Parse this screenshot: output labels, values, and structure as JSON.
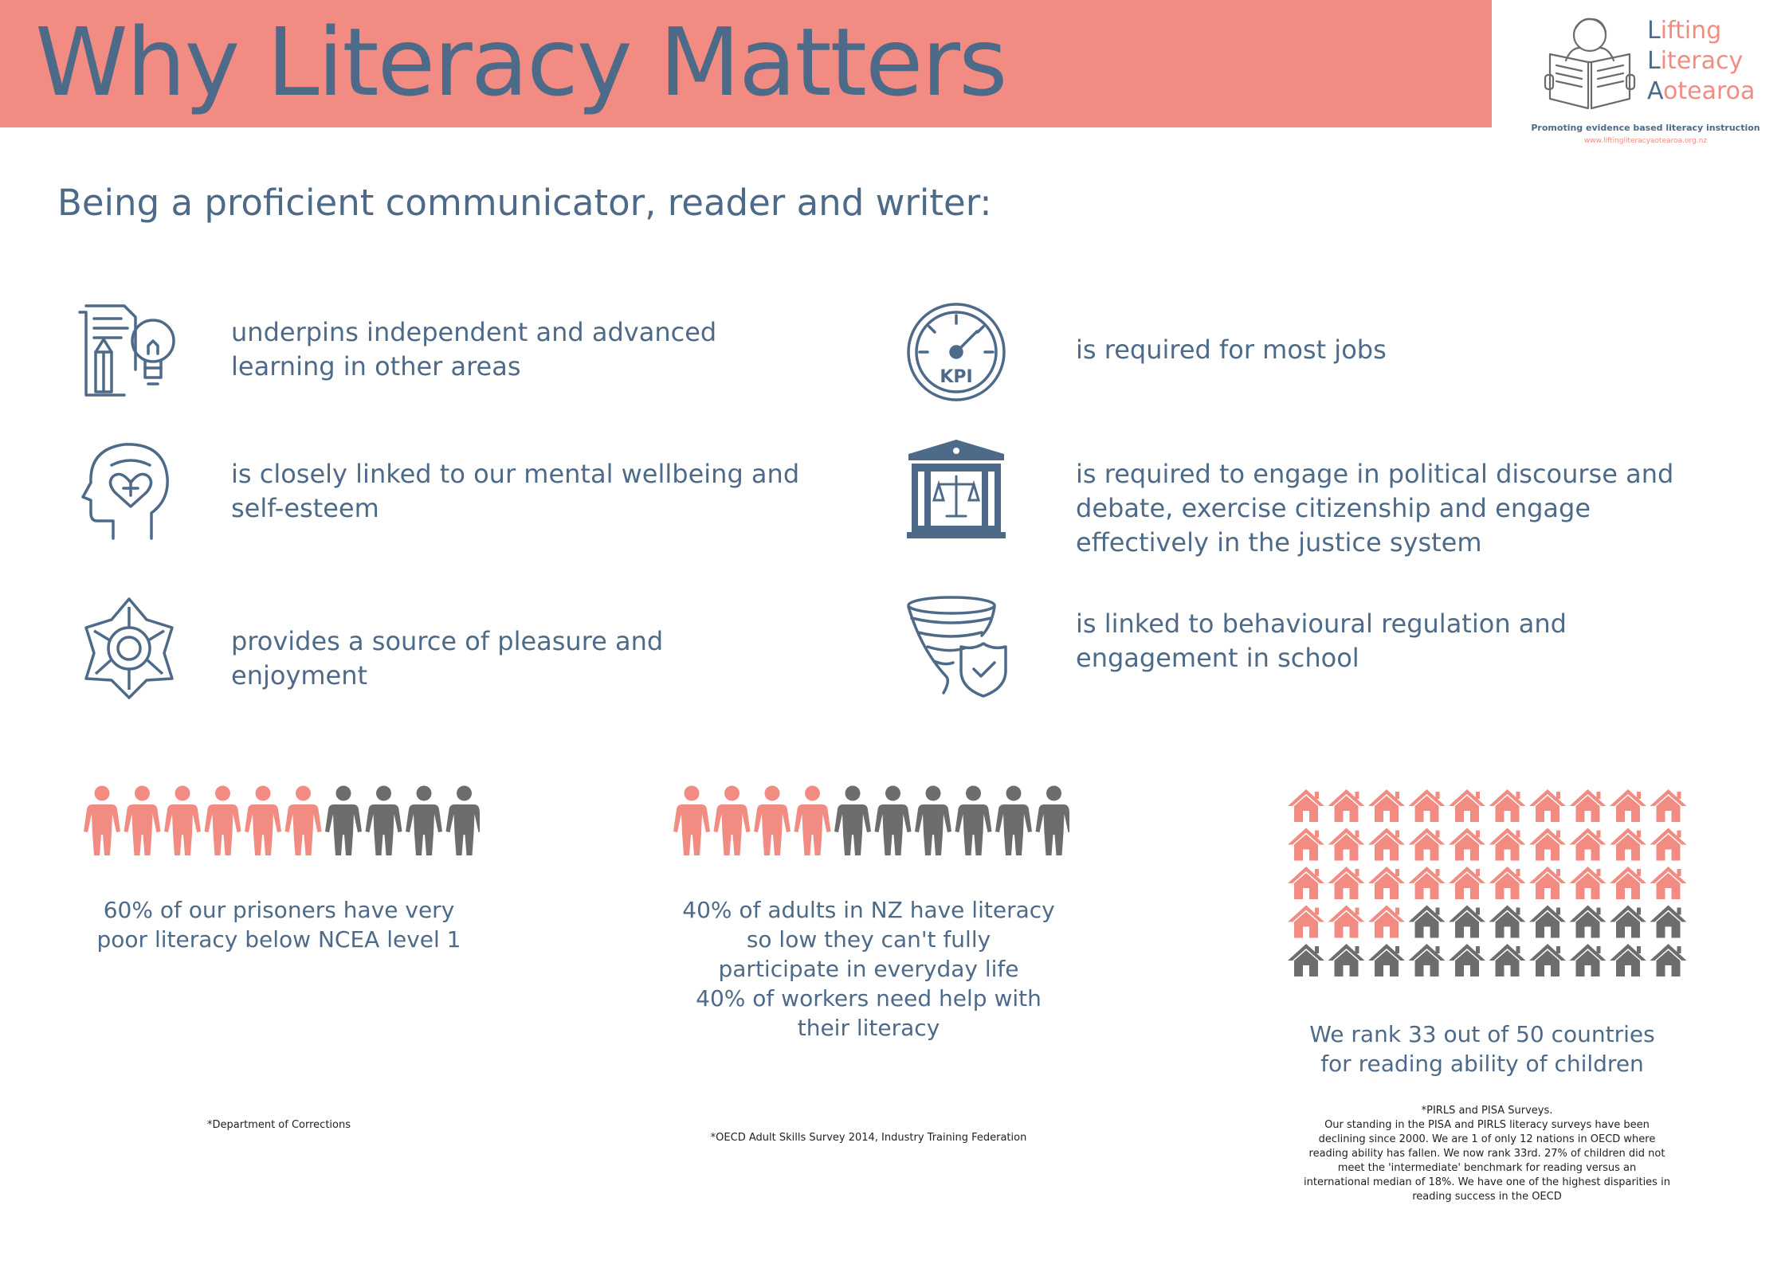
{
  "header": {
    "title": "Why Literacy Matters"
  },
  "logo": {
    "line1_initial": "L",
    "line1_rest": "ifting",
    "line2_initial": "L",
    "line2_rest": "iteracy",
    "line3_initial": "A",
    "line3_rest": "otearoa",
    "tagline": "Promoting evidence based literacy instruction",
    "url": "www.liftingliteracyaotearoa.org.nz"
  },
  "intro": {
    "heading": "Being a proficient communicator, reader and writer:"
  },
  "benefits": [
    {
      "icon": "document-lightbulb-icon",
      "text": "underpins independent and advanced learning in other areas"
    },
    {
      "icon": "head-heart-icon",
      "text": "is closely linked to our mental wellbeing and self-esteem"
    },
    {
      "icon": "flower-icon",
      "text": "provides a source of pleasure and enjoyment"
    },
    {
      "icon": "kpi-gauge-icon",
      "text": "is required for most jobs"
    },
    {
      "icon": "courthouse-scales-icon",
      "text": "is required to engage in political discourse and debate, exercise citizenship and engage effectively in the justice system"
    },
    {
      "icon": "tornado-shield-icon",
      "text": "is linked to behavioural regulation and engagement in school"
    }
  ],
  "colors": {
    "accent": "#f28b82",
    "text": "#4e6a89",
    "neutral": "#6d6d6d"
  },
  "stats": {
    "prisoners": {
      "highlighted": 6,
      "total": 10,
      "text": "60% of our prisoners have very poor literacy below NCEA level 1",
      "source": "*Department of Corrections"
    },
    "adults": {
      "highlighted": 4,
      "total": 10,
      "text_lines": [
        "40% of adults in NZ have literacy",
        "so low they can't fully",
        "participate in everyday life",
        "40% of workers need help with",
        "their literacy"
      ],
      "source": "*OECD Adult Skills Survey 2014, Industry Training Federation"
    },
    "ranking": {
      "rank": 33,
      "total": 50,
      "text_lines": [
        "We rank 33 out of 50 countries",
        "for reading ability of children"
      ],
      "source_lines": [
        "*PIRLS and PISA Surveys.",
        "Our standing in the PISA and PIRLS literacy surveys have been",
        "declining since 2000. We are 1 of only 12 nations in OECD where",
        "reading ability has fallen. We now rank 33rd. 27% of children did not",
        "meet the 'intermediate' benchmark for reading versus an",
        "international median of 18%. We have one of the highest disparities in",
        "reading success in the OECD"
      ]
    }
  }
}
